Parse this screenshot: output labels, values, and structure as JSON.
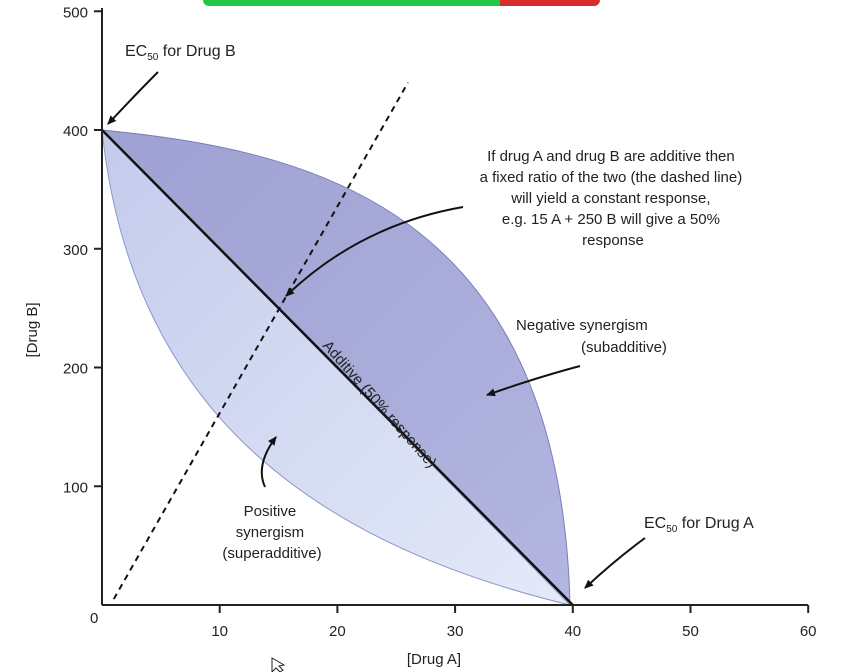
{
  "topbar": {
    "colors": [
      "#22c744",
      "#d62d2d"
    ],
    "fill_fraction": 0.74
  },
  "chart_data": {
    "type": "isobologram",
    "xlabel": "[Drug A]",
    "ylabel": "[Drug B]",
    "xlim": [
      0,
      60
    ],
    "ylim": [
      0,
      500
    ],
    "x_ticks": [
      10,
      20,
      30,
      40,
      50,
      60
    ],
    "y_ticks": [
      100,
      200,
      300,
      400,
      500
    ],
    "origin_label": "0",
    "additive_line": {
      "points": [
        [
          0,
          400
        ],
        [
          40,
          0
        ]
      ],
      "label": "Additive (50% response)"
    },
    "fixed_ratio_line": {
      "points": [
        [
          1,
          5
        ],
        [
          26,
          440
        ]
      ],
      "style": "dashed"
    },
    "regions": [
      {
        "name": "Negative synergism (subadditive)",
        "color": "#a9acd8"
      },
      {
        "name": "Positive synergism (superadditive)",
        "color": "#c9d3ee"
      }
    ],
    "annotations": {
      "ec50_b": {
        "text": "EC",
        "sub": "50",
        "rest": " for Drug B"
      },
      "ec50_a": {
        "text": "EC",
        "sub": "50",
        "rest": " for Drug A"
      },
      "fixed_ratio_note": [
        "If drug A and drug B are additive then",
        "a fixed ratio of the two  (the dashed line)",
        "will yield a constant response,",
        "e.g. 15 A + 250 B  will give a 50%",
        "response"
      ],
      "negative": [
        "Negative synergism",
        "(subadditive)"
      ],
      "positive": [
        "Positive",
        "synergism",
        "(superadditive)"
      ]
    }
  }
}
